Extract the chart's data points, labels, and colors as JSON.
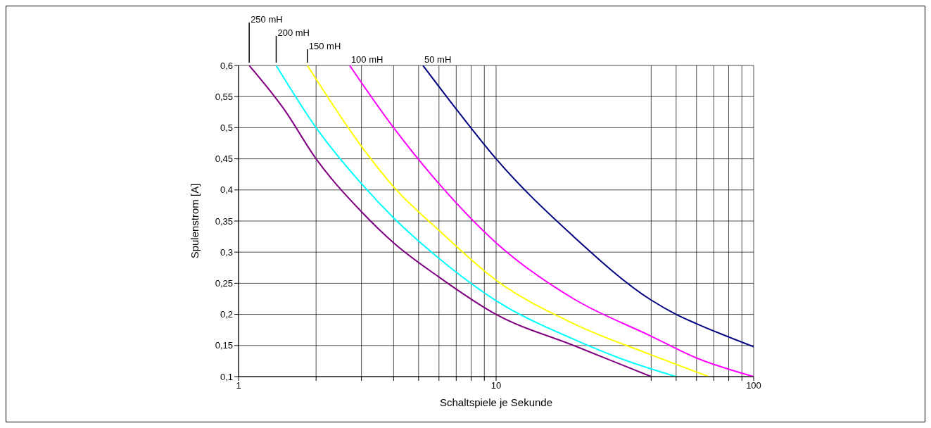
{
  "chart_data": {
    "type": "line",
    "xlabel": "Schaltspiele je Sekunde",
    "ylabel": "Spulenstrom [A]",
    "log": "x",
    "grid": true,
    "xlim": [
      1,
      100
    ],
    "xticks": [
      1,
      {
        "value": 2,
        "label": null
      },
      {
        "value": 3,
        "label": null
      },
      {
        "value": 4,
        "label": null
      },
      {
        "value": 5,
        "label": null
      },
      {
        "value": 6,
        "label": null
      },
      {
        "value": 7,
        "label": null
      },
      {
        "value": 8,
        "label": null
      },
      {
        "value": 9,
        "label": null
      },
      10,
      {
        "value": 40,
        "label": null
      },
      {
        "value": 50,
        "label": null
      },
      {
        "value": 60,
        "label": null
      },
      {
        "value": 70,
        "label": null
      },
      {
        "value": 80,
        "label": null
      },
      {
        "value": 90,
        "label": null
      },
      100
    ],
    "ylim": [
      0.1,
      0.6
    ],
    "yticks": [
      {
        "value": 0.1,
        "label": "0,1"
      },
      {
        "value": 0.15,
        "label": "0,15"
      },
      {
        "value": 0.2,
        "label": "0,2"
      },
      {
        "value": 0.25,
        "label": "0,25"
      },
      {
        "value": 0.3,
        "label": "0,3"
      },
      {
        "value": 0.35,
        "label": "0,35"
      },
      {
        "value": 0.4,
        "label": "0,4"
      },
      {
        "value": 0.45,
        "label": "0,45"
      },
      {
        "value": 0.5,
        "label": "0,5"
      },
      {
        "value": 0.55,
        "label": "0,55"
      },
      {
        "value": 0.6,
        "label": "0,6"
      }
    ],
    "series": [
      {
        "name": "250 mH",
        "color": "#800080",
        "x": [
          1.1,
          1.5,
          2,
          3,
          4,
          6,
          10,
          20,
          40
        ],
        "values": [
          0.6,
          0.53,
          0.45,
          0.365,
          0.315,
          0.26,
          0.2,
          0.15,
          0.1
        ]
      },
      {
        "name": "200 mH",
        "color": "#00ffff",
        "x": [
          1.4,
          2,
          3,
          4,
          6,
          10,
          20,
          30,
          50
        ],
        "values": [
          0.6,
          0.5,
          0.41,
          0.355,
          0.29,
          0.222,
          0.16,
          0.13,
          0.1
        ]
      },
      {
        "name": "150 mH",
        "color": "#ffff00",
        "x": [
          1.85,
          3,
          4,
          6,
          10,
          20,
          40,
          67
        ],
        "values": [
          0.6,
          0.47,
          0.405,
          0.335,
          0.255,
          0.185,
          0.135,
          0.1
        ]
      },
      {
        "name": "100 mH",
        "color": "#ff00ff",
        "x": [
          2.7,
          4,
          6,
          10,
          20,
          40,
          60,
          100
        ],
        "values": [
          0.6,
          0.5,
          0.41,
          0.315,
          0.225,
          0.165,
          0.13,
          0.1
        ]
      },
      {
        "name": "50 mH",
        "color": "#000080",
        "x": [
          5.2,
          7,
          10,
          20,
          40,
          50,
          60,
          100
        ],
        "values": [
          0.6,
          0.53,
          0.45,
          0.325,
          0.223,
          0.2,
          0.185,
          0.148
        ]
      }
    ]
  }
}
